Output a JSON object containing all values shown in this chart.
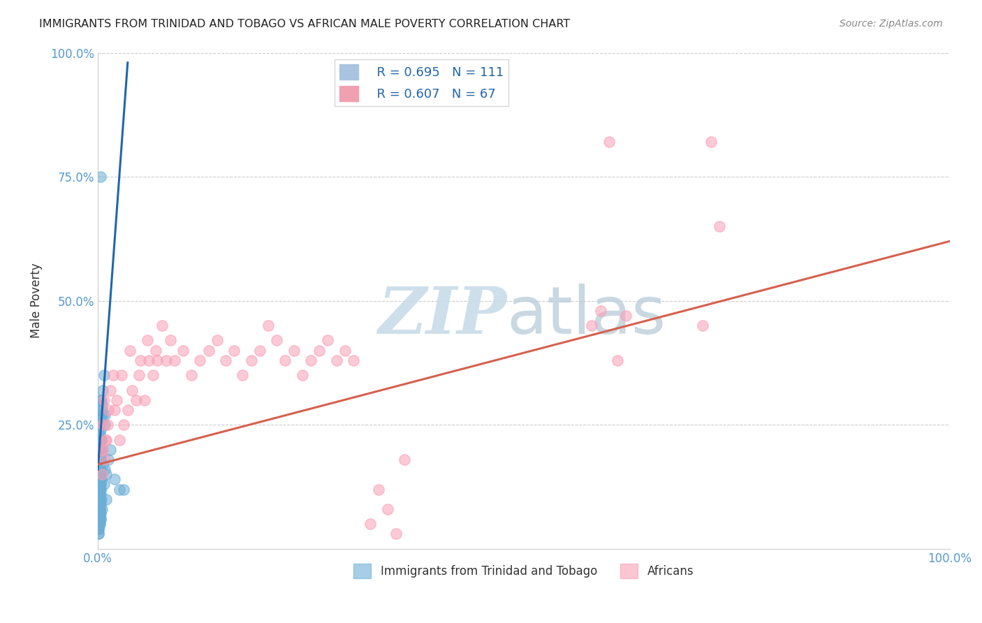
{
  "title": "IMMIGRANTS FROM TRINIDAD AND TOBAGO VS AFRICAN MALE POVERTY CORRELATION CHART",
  "source": "Source: ZipAtlas.com",
  "ylabel": "Male Poverty",
  "legend_label_blue": "Immigrants from Trinidad and Tobago",
  "legend_label_pink": "Africans",
  "blue_color": "#6baed6",
  "pink_color": "#fa9fb5",
  "blue_line_color": "#2166ac",
  "pink_line_color": "#d6604d",
  "watermark_zip_color": "#c8dce8",
  "watermark_atlas_color": "#b8ccd8",
  "background_color": "#ffffff",
  "blue_scatter": {
    "x": [
      0.001,
      0.002,
      0.003,
      0.002,
      0.001,
      0.003,
      0.004,
      0.002,
      0.001,
      0.002,
      0.003,
      0.001,
      0.002,
      0.003,
      0.002,
      0.001,
      0.003,
      0.002,
      0.004,
      0.001,
      0.002,
      0.003,
      0.001,
      0.002,
      0.003,
      0.001,
      0.002,
      0.003,
      0.001,
      0.002,
      0.005,
      0.004,
      0.003,
      0.002,
      0.001,
      0.006,
      0.002,
      0.003,
      0.001,
      0.002,
      0.001,
      0.002,
      0.003,
      0.001,
      0.002,
      0.001,
      0.003,
      0.002,
      0.004,
      0.001,
      0.002,
      0.003,
      0.001,
      0.002,
      0.001,
      0.003,
      0.002,
      0.001,
      0.002,
      0.001,
      0.002,
      0.003,
      0.001,
      0.002,
      0.001,
      0.002,
      0.003,
      0.001,
      0.002,
      0.001,
      0.002,
      0.001,
      0.002,
      0.001,
      0.002,
      0.001,
      0.002,
      0.001,
      0.002,
      0.001,
      0.003,
      0.002,
      0.001,
      0.002,
      0.001,
      0.008,
      0.005,
      0.004,
      0.006,
      0.003,
      0.007,
      0.004,
      0.005,
      0.003,
      0.002,
      0.03,
      0.01,
      0.012,
      0.015,
      0.008,
      0.02,
      0.025,
      0.01,
      0.005,
      0.007,
      0.003,
      0.006,
      0.004,
      0.008,
      0.003,
      0.002
    ],
    "y": [
      0.15,
      0.18,
      0.12,
      0.2,
      0.1,
      0.22,
      0.14,
      0.16,
      0.08,
      0.18,
      0.12,
      0.1,
      0.15,
      0.13,
      0.19,
      0.11,
      0.17,
      0.09,
      0.14,
      0.12,
      0.16,
      0.18,
      0.1,
      0.13,
      0.15,
      0.08,
      0.12,
      0.16,
      0.09,
      0.14,
      0.2,
      0.22,
      0.18,
      0.25,
      0.28,
      0.27,
      0.3,
      0.26,
      0.23,
      0.21,
      0.05,
      0.06,
      0.07,
      0.04,
      0.08,
      0.03,
      0.09,
      0.05,
      0.1,
      0.04,
      0.07,
      0.06,
      0.05,
      0.08,
      0.04,
      0.06,
      0.07,
      0.03,
      0.05,
      0.04,
      0.11,
      0.13,
      0.08,
      0.1,
      0.09,
      0.12,
      0.11,
      0.07,
      0.1,
      0.08,
      0.14,
      0.1,
      0.13,
      0.09,
      0.12,
      0.11,
      0.08,
      0.1,
      0.09,
      0.07,
      0.2,
      0.17,
      0.22,
      0.19,
      0.15,
      0.25,
      0.28,
      0.3,
      0.32,
      0.22,
      0.35,
      0.27,
      0.29,
      0.24,
      0.2,
      0.12,
      0.15,
      0.18,
      0.2,
      0.16,
      0.14,
      0.12,
      0.1,
      0.08,
      0.13,
      0.75,
      0.17,
      0.22,
      0.27,
      0.19,
      0.23
    ]
  },
  "pink_scatter": {
    "x": [
      0.004,
      0.006,
      0.008,
      0.01,
      0.012,
      0.005,
      0.007,
      0.009,
      0.011,
      0.006,
      0.015,
      0.02,
      0.018,
      0.025,
      0.022,
      0.03,
      0.028,
      0.035,
      0.04,
      0.038,
      0.045,
      0.05,
      0.048,
      0.055,
      0.06,
      0.058,
      0.065,
      0.07,
      0.068,
      0.075,
      0.08,
      0.085,
      0.09,
      0.1,
      0.11,
      0.12,
      0.13,
      0.14,
      0.15,
      0.16,
      0.17,
      0.18,
      0.19,
      0.2,
      0.21,
      0.22,
      0.23,
      0.24,
      0.25,
      0.26,
      0.27,
      0.28,
      0.29,
      0.3,
      0.32,
      0.33,
      0.34,
      0.35,
      0.36,
      0.58,
      0.59,
      0.6,
      0.61,
      0.62,
      0.71,
      0.72,
      0.73
    ],
    "y": [
      0.2,
      0.25,
      0.18,
      0.22,
      0.28,
      0.15,
      0.3,
      0.22,
      0.25,
      0.2,
      0.32,
      0.28,
      0.35,
      0.22,
      0.3,
      0.25,
      0.35,
      0.28,
      0.32,
      0.4,
      0.3,
      0.38,
      0.35,
      0.3,
      0.38,
      0.42,
      0.35,
      0.38,
      0.4,
      0.45,
      0.38,
      0.42,
      0.38,
      0.4,
      0.35,
      0.38,
      0.4,
      0.42,
      0.38,
      0.4,
      0.35,
      0.38,
      0.4,
      0.45,
      0.42,
      0.38,
      0.4,
      0.35,
      0.38,
      0.4,
      0.42,
      0.38,
      0.4,
      0.38,
      0.05,
      0.12,
      0.08,
      0.03,
      0.18,
      0.45,
      0.48,
      0.82,
      0.38,
      0.47,
      0.45,
      0.82,
      0.65
    ]
  },
  "blue_trendline": {
    "x": [
      0.0,
      0.035
    ],
    "y": [
      0.16,
      0.98
    ]
  },
  "pink_trendline": {
    "x": [
      0.0,
      1.0
    ],
    "y": [
      0.17,
      0.62
    ]
  },
  "xlim": [
    0,
    1.0
  ],
  "ylim": [
    0,
    1.0
  ]
}
